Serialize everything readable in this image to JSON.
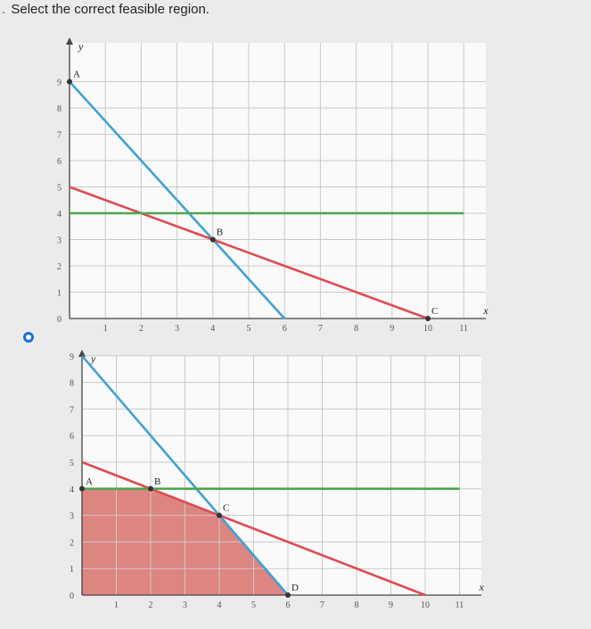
{
  "question": {
    "number": ".",
    "prompt": "Select the correct feasible region."
  },
  "colors": {
    "grid": "#c9c9c9",
    "axis": "#444444",
    "blue_line": "#3ea2d6",
    "red_line": "#df4b52",
    "green_line": "#4ca64c",
    "fill": "#d97873"
  },
  "chart_data": [
    {
      "type": "line",
      "xlabel": "x",
      "ylabel": "y",
      "x_ticks": [
        "1",
        "2",
        "3",
        "4",
        "5",
        "6",
        "7",
        "8",
        "9",
        "10",
        "11"
      ],
      "y_ticks": [
        "0",
        "1",
        "2",
        "3",
        "4",
        "5",
        "6",
        "7",
        "8",
        "9"
      ],
      "xlim": [
        0,
        11
      ],
      "ylim": [
        0,
        9
      ],
      "series": [
        {
          "color": "blue",
          "points": [
            [
              0,
              9
            ],
            [
              6,
              0
            ]
          ]
        },
        {
          "color": "red",
          "points": [
            [
              0,
              5
            ],
            [
              10,
              0
            ]
          ]
        },
        {
          "color": "green",
          "points": [
            [
              0,
              4
            ],
            [
              11,
              4
            ]
          ]
        }
      ],
      "points": [
        {
          "label": "A",
          "x": 0,
          "y": 9
        },
        {
          "label": "B",
          "x": 4,
          "y": 3
        },
        {
          "label": "C",
          "x": 10,
          "y": 0
        }
      ],
      "shaded_region": []
    },
    {
      "type": "line",
      "xlabel": "x",
      "ylabel": "y",
      "x_ticks": [
        "1",
        "2",
        "3",
        "4",
        "5",
        "6",
        "7",
        "8",
        "9",
        "10",
        "11"
      ],
      "y_ticks": [
        "0",
        "1",
        "2",
        "3",
        "4",
        "5",
        "6",
        "7",
        "8",
        "9"
      ],
      "xlim": [
        0,
        11
      ],
      "ylim": [
        0,
        9
      ],
      "series": [
        {
          "color": "blue",
          "points": [
            [
              0,
              9
            ],
            [
              6,
              0
            ]
          ]
        },
        {
          "color": "red",
          "points": [
            [
              0,
              5
            ],
            [
              10,
              0
            ]
          ]
        },
        {
          "color": "green",
          "points": [
            [
              0,
              4
            ],
            [
              11,
              4
            ]
          ]
        }
      ],
      "points": [
        {
          "label": "A",
          "x": 0,
          "y": 4
        },
        {
          "label": "B",
          "x": 2,
          "y": 4
        },
        {
          "label": "C",
          "x": 4,
          "y": 3
        },
        {
          "label": "D",
          "x": 6,
          "y": 0
        }
      ],
      "shaded_region": [
        [
          0,
          0
        ],
        [
          0,
          4
        ],
        [
          2,
          4
        ],
        [
          4,
          3
        ],
        [
          6,
          0
        ]
      ]
    }
  ]
}
